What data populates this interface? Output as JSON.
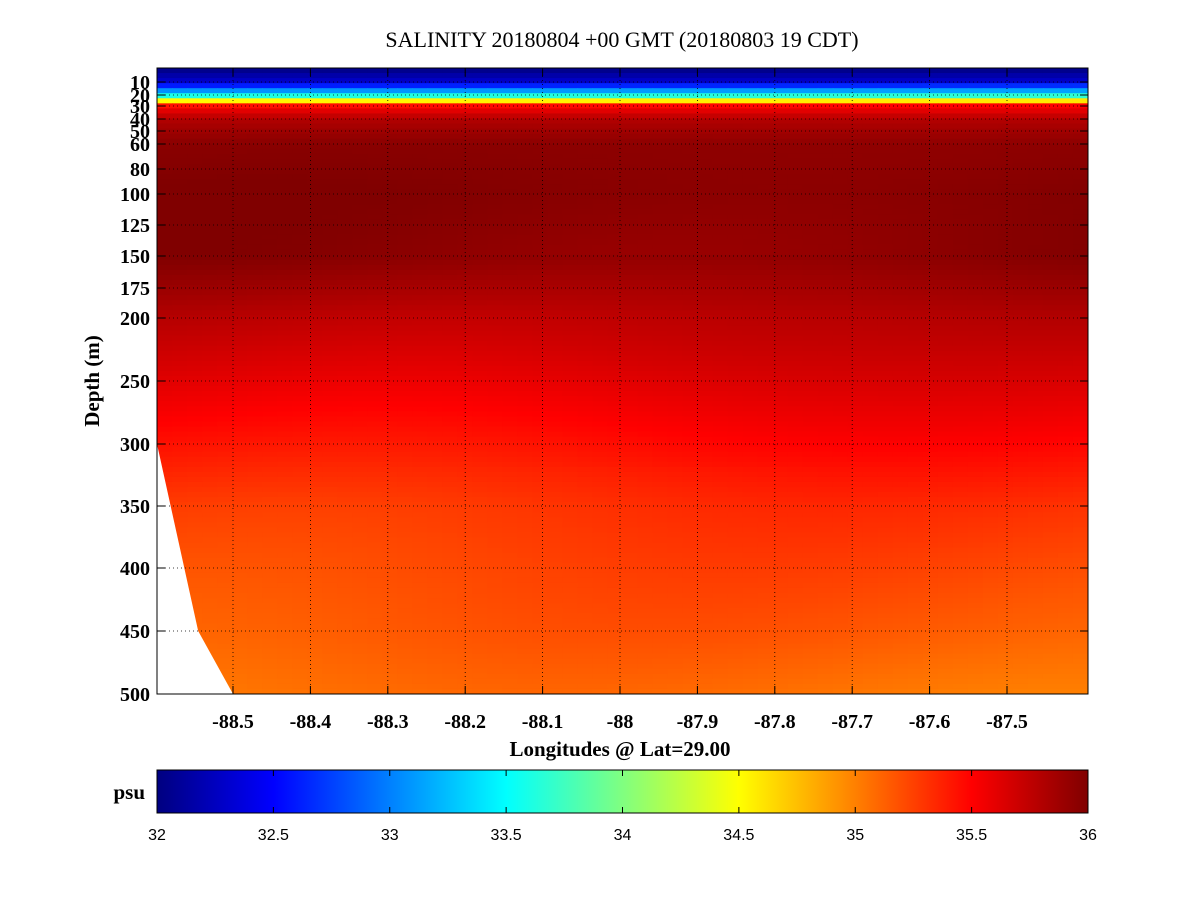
{
  "chart_data": {
    "type": "heatmap",
    "title": "SALINITY 20180804 +00 GMT (20180803 19 CDT)",
    "xlabel": "Longitudes @ Lat=29.00",
    "ylabel": "Depth (m)",
    "x_ticks": [
      -88.5,
      -88.4,
      -88.3,
      -88.2,
      -88.1,
      -88,
      -87.9,
      -87.8,
      -87.7,
      -87.6,
      -87.5
    ],
    "x_tick_labels": [
      "-88.5",
      "-88.4",
      "-88.3",
      "-88.2",
      "-88.1",
      "-88",
      "-87.9",
      "-87.8",
      "-87.7",
      "-87.6",
      "-87.5"
    ],
    "xlim": [
      -88.6,
      -87.4
    ],
    "y_ticks": [
      10,
      20,
      30,
      40,
      50,
      60,
      80,
      100,
      125,
      150,
      175,
      200,
      250,
      300,
      350,
      400,
      450,
      500
    ],
    "y_tick_labels": [
      "10",
      "20",
      "30",
      "40",
      "50",
      "60",
      "80",
      "100",
      "125",
      "150",
      "175",
      "200",
      "250",
      "300",
      "350",
      "400",
      "450",
      "500"
    ],
    "ylim": [
      0,
      500
    ],
    "y_reversed": true,
    "grid": true,
    "colorbar": {
      "label": "psu",
      "range": [
        32,
        36
      ],
      "ticks": [
        32,
        32.5,
        33,
        33.5,
        34,
        34.5,
        35,
        35.5,
        36
      ],
      "tick_labels": [
        "32",
        "32.5",
        "33",
        "33.5",
        "34",
        "34.5",
        "35",
        "35.5",
        "36"
      ],
      "colormap": "jet"
    },
    "salinity_profile": {
      "depths": [
        0,
        10,
        20,
        25,
        30,
        40,
        60,
        100,
        150,
        175,
        200,
        250,
        300,
        350,
        400,
        450,
        500
      ],
      "values": [
        32.0,
        32.3,
        33.5,
        34.5,
        35.5,
        35.8,
        35.95,
        35.98,
        35.95,
        35.85,
        35.75,
        35.6,
        35.45,
        35.3,
        35.22,
        35.15,
        35.05
      ]
    },
    "bathymetry": [
      {
        "lon": -88.6,
        "depth": 300
      },
      {
        "lon": -88.545,
        "depth": 450
      },
      {
        "lon": -88.5,
        "depth": 500
      }
    ]
  }
}
